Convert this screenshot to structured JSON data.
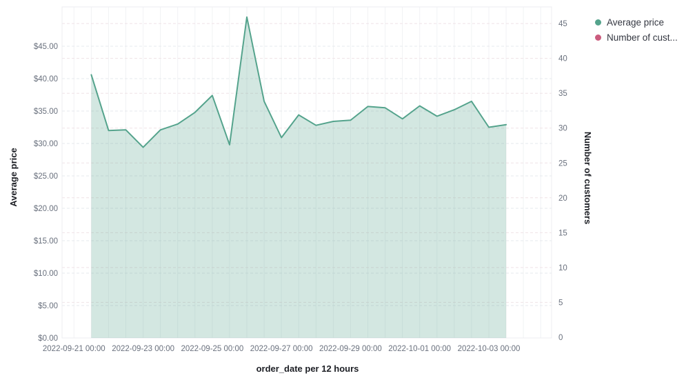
{
  "chart": {
    "legend": {
      "items": [
        {
          "label": "Average price",
          "color": "#54a38c"
        },
        {
          "label": "Number of cust...",
          "color": "#cb5c7e"
        }
      ]
    },
    "axes": {
      "left": {
        "title": "Average price",
        "ticks": [
          "$0.00",
          "$5.00",
          "$10.00",
          "$15.00",
          "$20.00",
          "$25.00",
          "$30.00",
          "$35.00",
          "$40.00",
          "$45.00"
        ]
      },
      "right": {
        "title": "Number of customers",
        "ticks": [
          "0",
          "5",
          "10",
          "15",
          "20",
          "25",
          "30",
          "35",
          "40",
          "45"
        ]
      },
      "x": {
        "title": "order_date per 12 hours",
        "ticks": [
          "2022-09-21 00:00",
          "2022-09-23 00:00",
          "2022-09-25 00:00",
          "2022-09-27 00:00",
          "2022-09-29 00:00",
          "2022-10-01 00:00",
          "2022-10-03 00:00"
        ]
      }
    }
  },
  "chart_data": {
    "type": "area",
    "title": "",
    "xlabel": "order_date per 12 hours",
    "ylabel_left": "Average price",
    "ylabel_right": "Number of customers",
    "x_interval": "12 hours",
    "x": [
      "2022-09-21 12:00",
      "2022-09-22 00:00",
      "2022-09-22 12:00",
      "2022-09-23 00:00",
      "2022-09-23 12:00",
      "2022-09-24 00:00",
      "2022-09-24 12:00",
      "2022-09-25 00:00",
      "2022-09-25 12:00",
      "2022-09-26 00:00",
      "2022-09-26 12:00",
      "2022-09-27 00:00",
      "2022-09-27 12:00",
      "2022-09-28 00:00",
      "2022-09-28 12:00",
      "2022-09-29 00:00",
      "2022-09-29 12:00",
      "2022-09-30 00:00",
      "2022-09-30 12:00",
      "2022-10-01 00:00",
      "2022-10-01 12:00",
      "2022-10-02 00:00",
      "2022-10-02 12:00",
      "2022-10-03 00:00",
      "2022-10-03 12:00"
    ],
    "series": [
      {
        "name": "Average price",
        "axis": "left",
        "color": "#54a38c",
        "fill": "rgba(84,163,140,0.26)",
        "values": [
          40.6,
          32.0,
          32.1,
          29.4,
          32.1,
          33.0,
          34.8,
          37.4,
          29.8,
          49.5,
          36.5,
          30.9,
          34.4,
          32.8,
          33.4,
          33.6,
          35.7,
          35.5,
          33.8,
          35.8,
          34.2,
          35.2,
          36.5,
          32.5,
          32.9
        ]
      },
      {
        "name": "Number of customers",
        "axis": "right",
        "color": "#cb5c7e",
        "values": []
      }
    ],
    "ylim_left": [
      0,
      51
    ],
    "ylim_right": [
      0,
      47.4
    ],
    "y_tick_step": 5,
    "grid": {
      "horizontal": "dashed, one set per axis",
      "vertical": "solid, every 12 hours"
    },
    "legend_position": "top-right"
  }
}
